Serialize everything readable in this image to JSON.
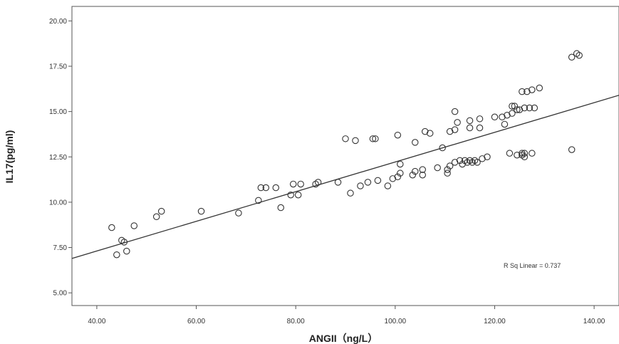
{
  "chart_data": {
    "type": "scatter",
    "xlabel": "ANGII（ng/L）",
    "ylabel": "IL17(pg/ml)",
    "xlim": [
      35,
      145
    ],
    "ylim": [
      4.3,
      20.8
    ],
    "x_ticks": [
      "40.00",
      "60.00",
      "80.00",
      "100.00",
      "120.00",
      "140.00"
    ],
    "y_ticks": [
      "5.00",
      "7.50",
      "10.00",
      "12.50",
      "15.00",
      "17.50",
      "20.00"
    ],
    "grid": false,
    "annotation": "R Sq Linear = 0.737",
    "fit_line": {
      "x": [
        35,
        145
      ],
      "y": [
        6.9,
        15.9
      ]
    },
    "points": [
      [
        43.0,
        8.6
      ],
      [
        44.0,
        7.1
      ],
      [
        45.0,
        7.9
      ],
      [
        45.5,
        7.8
      ],
      [
        46.0,
        7.3
      ],
      [
        47.5,
        8.7
      ],
      [
        52.0,
        9.2
      ],
      [
        53.0,
        9.5
      ],
      [
        61.0,
        9.5
      ],
      [
        68.5,
        9.4
      ],
      [
        72.5,
        10.1
      ],
      [
        73.0,
        10.8
      ],
      [
        74.0,
        10.8
      ],
      [
        76.0,
        10.8
      ],
      [
        77.0,
        9.7
      ],
      [
        79.0,
        10.4
      ],
      [
        79.5,
        11.0
      ],
      [
        80.5,
        10.4
      ],
      [
        81.0,
        11.0
      ],
      [
        84.0,
        11.0
      ],
      [
        84.5,
        11.1
      ],
      [
        88.5,
        11.1
      ],
      [
        90.0,
        13.5
      ],
      [
        91.0,
        10.5
      ],
      [
        92.0,
        13.4
      ],
      [
        93.0,
        10.9
      ],
      [
        94.5,
        11.1
      ],
      [
        95.5,
        13.5
      ],
      [
        96.5,
        11.2
      ],
      [
        96.0,
        13.5
      ],
      [
        98.5,
        10.9
      ],
      [
        99.5,
        11.3
      ],
      [
        100.5,
        13.7
      ],
      [
        100.5,
        11.4
      ],
      [
        101.0,
        12.1
      ],
      [
        101.0,
        11.6
      ],
      [
        103.5,
        11.5
      ],
      [
        104.0,
        13.3
      ],
      [
        104.0,
        11.7
      ],
      [
        105.5,
        11.8
      ],
      [
        105.5,
        11.5
      ],
      [
        106.0,
        13.9
      ],
      [
        107.0,
        13.8
      ],
      [
        108.5,
        11.9
      ],
      [
        109.5,
        13.0
      ],
      [
        110.5,
        11.8
      ],
      [
        110.5,
        11.6
      ],
      [
        111.0,
        13.9
      ],
      [
        111.0,
        12.0
      ],
      [
        112.0,
        15.0
      ],
      [
        112.0,
        14.0
      ],
      [
        112.0,
        12.2
      ],
      [
        112.5,
        14.4
      ],
      [
        113.0,
        12.3
      ],
      [
        113.5,
        12.1
      ],
      [
        114.0,
        12.3
      ],
      [
        114.5,
        12.2
      ],
      [
        115.0,
        14.5
      ],
      [
        115.0,
        14.1
      ],
      [
        115.0,
        12.3
      ],
      [
        115.5,
        12.2
      ],
      [
        116.0,
        12.3
      ],
      [
        116.5,
        12.2
      ],
      [
        117.0,
        14.6
      ],
      [
        117.0,
        14.1
      ],
      [
        117.5,
        12.4
      ],
      [
        118.5,
        12.5
      ],
      [
        120.0,
        14.7
      ],
      [
        121.5,
        14.7
      ],
      [
        122.0,
        14.3
      ],
      [
        122.5,
        14.8
      ],
      [
        123.0,
        12.7
      ],
      [
        123.5,
        15.3
      ],
      [
        123.5,
        14.9
      ],
      [
        124.0,
        15.3
      ],
      [
        124.5,
        12.6
      ],
      [
        124.5,
        15.1
      ],
      [
        125.0,
        15.1
      ],
      [
        125.5,
        16.1
      ],
      [
        125.5,
        12.7
      ],
      [
        125.5,
        12.6
      ],
      [
        126.0,
        12.5
      ],
      [
        126.0,
        12.7
      ],
      [
        126.0,
        15.2
      ],
      [
        126.5,
        16.1
      ],
      [
        127.0,
        15.2
      ],
      [
        127.5,
        16.2
      ],
      [
        127.5,
        12.7
      ],
      [
        128.0,
        15.2
      ],
      [
        129.0,
        16.3
      ],
      [
        135.5,
        12.9
      ],
      [
        135.5,
        18.0
      ],
      [
        136.5,
        18.2
      ],
      [
        137.0,
        18.1
      ]
    ]
  }
}
